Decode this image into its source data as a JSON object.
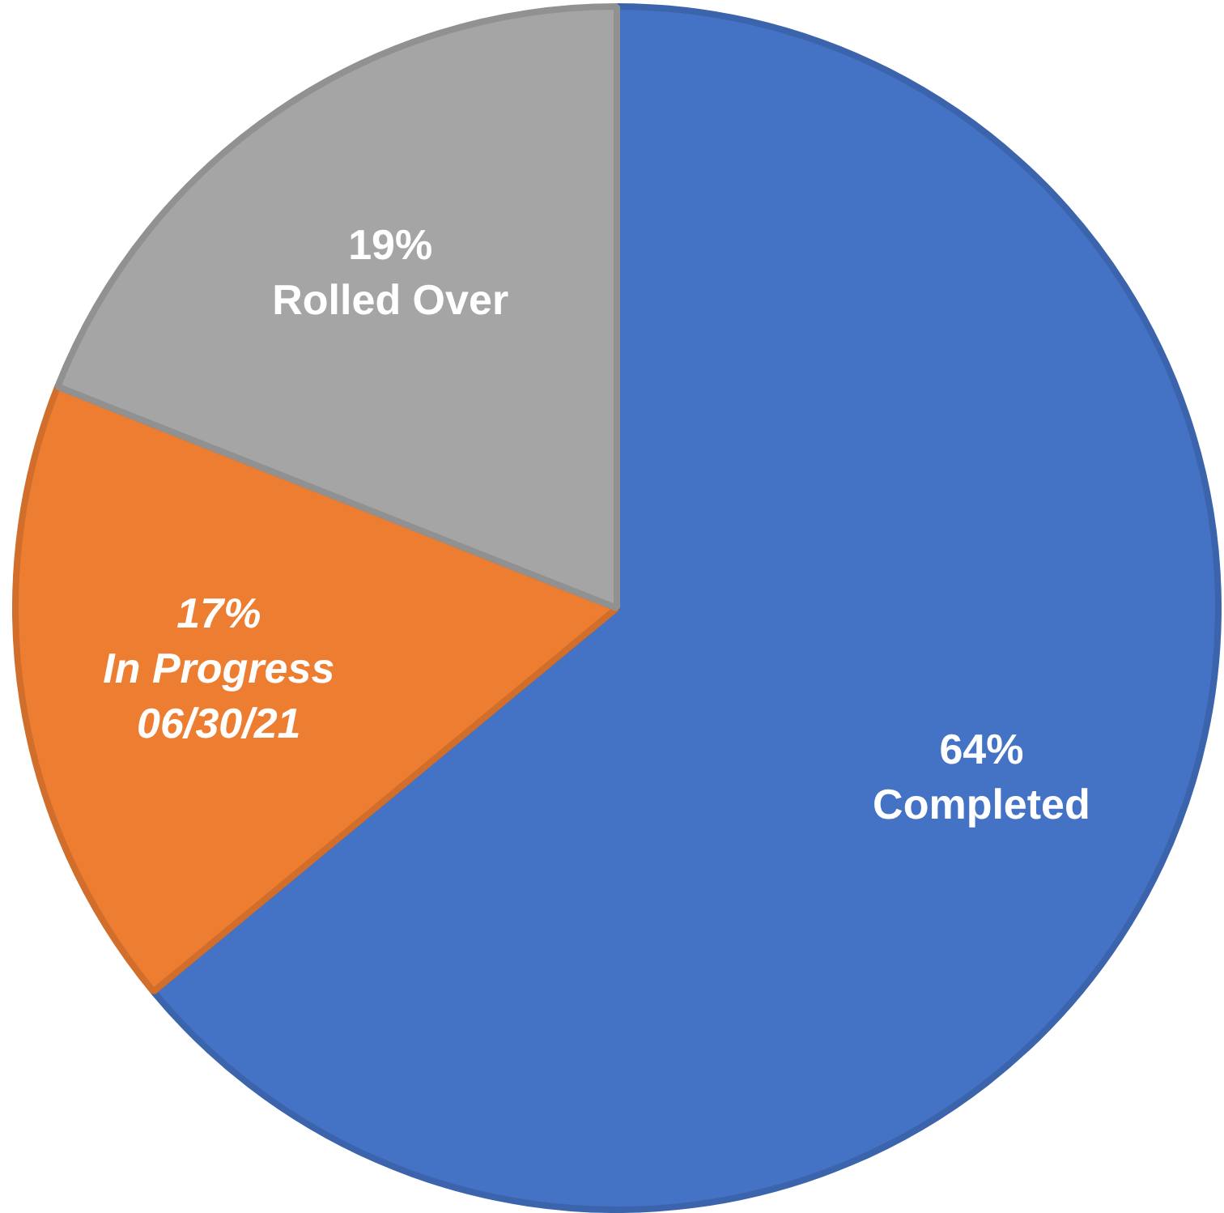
{
  "chart_data": {
    "type": "pie",
    "categories": [
      "Completed",
      "In Progress\n06/30/21",
      "Rolled Over"
    ],
    "values": [
      64,
      17,
      19
    ],
    "colors": [
      "#4472c4",
      "#ed7d31",
      "#a5a5a5"
    ],
    "value_labels": [
      "64%",
      "17%",
      "19%"
    ],
    "legend": false
  }
}
